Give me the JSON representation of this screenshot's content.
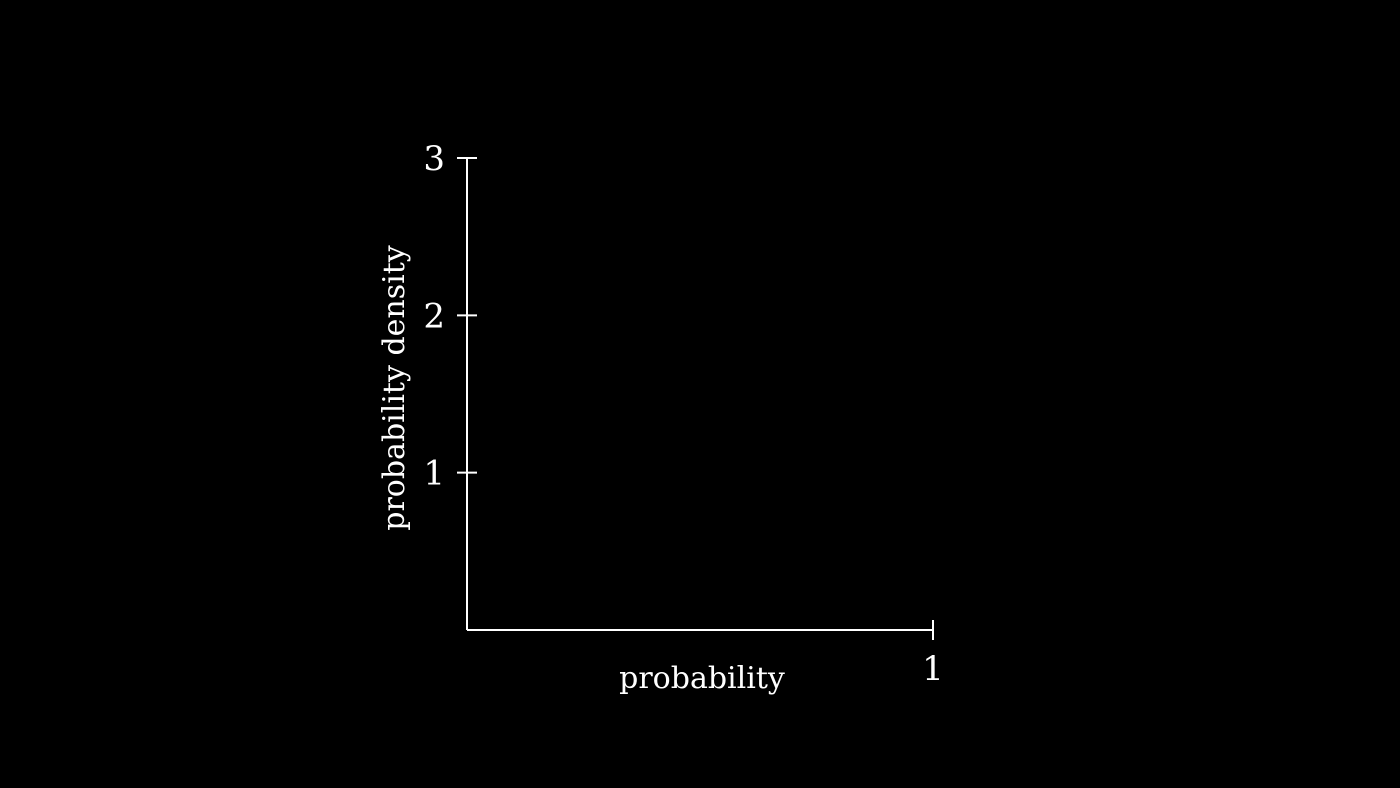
{
  "chart_data": {
    "type": "line",
    "title": "",
    "xlabel": "probability",
    "ylabel": "probability density",
    "xlim": [
      0,
      1
    ],
    "ylim": [
      0,
      3
    ],
    "x_ticks": [
      1
    ],
    "x_tick_labels": [
      "1"
    ],
    "y_ticks": [
      1,
      2,
      3
    ],
    "y_tick_labels": [
      "1",
      "2",
      "3"
    ],
    "series": [],
    "grid": false,
    "background": "#000000",
    "axis_color": "#ffffff"
  }
}
